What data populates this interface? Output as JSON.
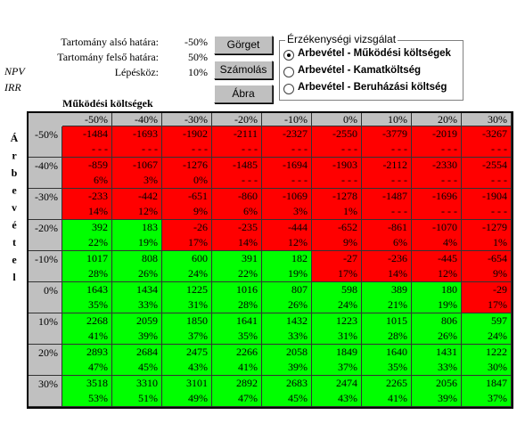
{
  "inputs": [
    {
      "label": "Tartomány alsó határa:",
      "value": "-50%"
    },
    {
      "label": "Tartomány felső határa:",
      "value": "50%"
    },
    {
      "label": "Lépésköz:",
      "value": "10%"
    }
  ],
  "outputs": [
    "NPV",
    "IRR"
  ],
  "buttons": [
    "Görget",
    "Számolás",
    "Ábra"
  ],
  "analysis": {
    "title": "Érzékenységi vizsgálat",
    "options": [
      "Árbevétel - Működési költségek",
      "Árbevétel - Kamatköltség",
      "Árbevétel - Beruházási költség"
    ],
    "selected": 0
  },
  "table": {
    "column_title": "Működési költségek",
    "row_title": "Árbevétel",
    "negative_color": "#ff0000",
    "positive_color": "#00ff00",
    "columns": [
      "-50%",
      "-40%",
      "-30%",
      "-20%",
      "-10%",
      "0%",
      "10%",
      "20%",
      "30%"
    ],
    "rows": [
      {
        "label": "-50%",
        "npv": [
          -1484,
          -1693,
          -1902,
          -2111,
          -2327,
          -2550,
          -3779,
          -2019,
          -3267
        ],
        "irr": [
          "- - -",
          "- - -",
          "- - -",
          "- - -",
          "- - -",
          "- - -",
          "- - -",
          "- - -",
          "- - -"
        ]
      },
      {
        "label": "-40%",
        "npv": [
          -859,
          -1067,
          -1276,
          -1485,
          -1694,
          -1903,
          -2112,
          -2330,
          -2554
        ],
        "irr": [
          "6%",
          "3%",
          "0%",
          "- - -",
          "- - -",
          "- - -",
          "- - -",
          "- - -",
          "- - -"
        ]
      },
      {
        "label": "-30%",
        "npv": [
          -233,
          -442,
          -651,
          -860,
          -1069,
          -1278,
          -1487,
          -1696,
          -1904
        ],
        "irr": [
          "14%",
          "12%",
          "9%",
          "6%",
          "3%",
          "1%",
          "- - -",
          "- - -",
          "- - -"
        ]
      },
      {
        "label": "-20%",
        "npv": [
          392,
          183,
          -26,
          -235,
          -444,
          -652,
          -861,
          -1070,
          -1279
        ],
        "irr": [
          "22%",
          "19%",
          "17%",
          "14%",
          "12%",
          "9%",
          "6%",
          "4%",
          "1%"
        ]
      },
      {
        "label": "-10%",
        "npv": [
          1017,
          808,
          600,
          391,
          182,
          -27,
          -236,
          -445,
          -654
        ],
        "irr": [
          "28%",
          "26%",
          "24%",
          "22%",
          "19%",
          "17%",
          "14%",
          "12%",
          "9%"
        ]
      },
      {
        "label": "0%",
        "npv": [
          1643,
          1434,
          1225,
          1016,
          807,
          598,
          389,
          180,
          -29
        ],
        "irr": [
          "35%",
          "33%",
          "31%",
          "28%",
          "26%",
          "24%",
          "21%",
          "19%",
          "17%"
        ]
      },
      {
        "label": "10%",
        "npv": [
          2268,
          2059,
          1850,
          1641,
          1432,
          1223,
          1015,
          806,
          597
        ],
        "irr": [
          "41%",
          "39%",
          "37%",
          "35%",
          "33%",
          "31%",
          "28%",
          "26%",
          "24%"
        ]
      },
      {
        "label": "20%",
        "npv": [
          2893,
          2684,
          2475,
          2266,
          2058,
          1849,
          1640,
          1431,
          1222
        ],
        "irr": [
          "47%",
          "45%",
          "43%",
          "41%",
          "39%",
          "37%",
          "35%",
          "33%",
          "30%"
        ]
      },
      {
        "label": "30%",
        "npv": [
          3518,
          3310,
          3101,
          2892,
          2683,
          2474,
          2265,
          2056,
          1847
        ],
        "irr": [
          "53%",
          "51%",
          "49%",
          "47%",
          "45%",
          "43%",
          "41%",
          "39%",
          "37%"
        ]
      }
    ]
  }
}
